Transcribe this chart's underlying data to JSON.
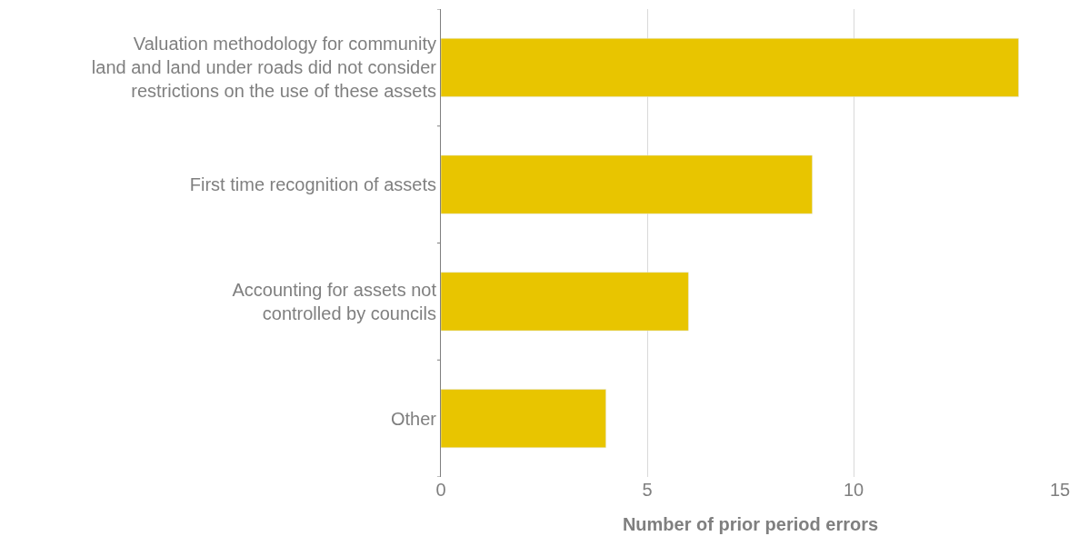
{
  "chart_data": {
    "type": "bar",
    "orientation": "horizontal",
    "xlabel": "Number of prior period errors",
    "categories": [
      "Valuation methodology for community\nland and land under roads did not consider\nrestrictions on the use of these assets",
      "First time recognition of assets",
      "Accounting for assets not\ncontrolled by councils",
      "Other"
    ],
    "values": [
      14,
      9,
      6,
      4
    ],
    "color": "#e8c500",
    "xlim": [
      0,
      15
    ],
    "xticks": [
      0,
      5,
      10,
      15
    ],
    "grid": "x",
    "legend": false
  }
}
